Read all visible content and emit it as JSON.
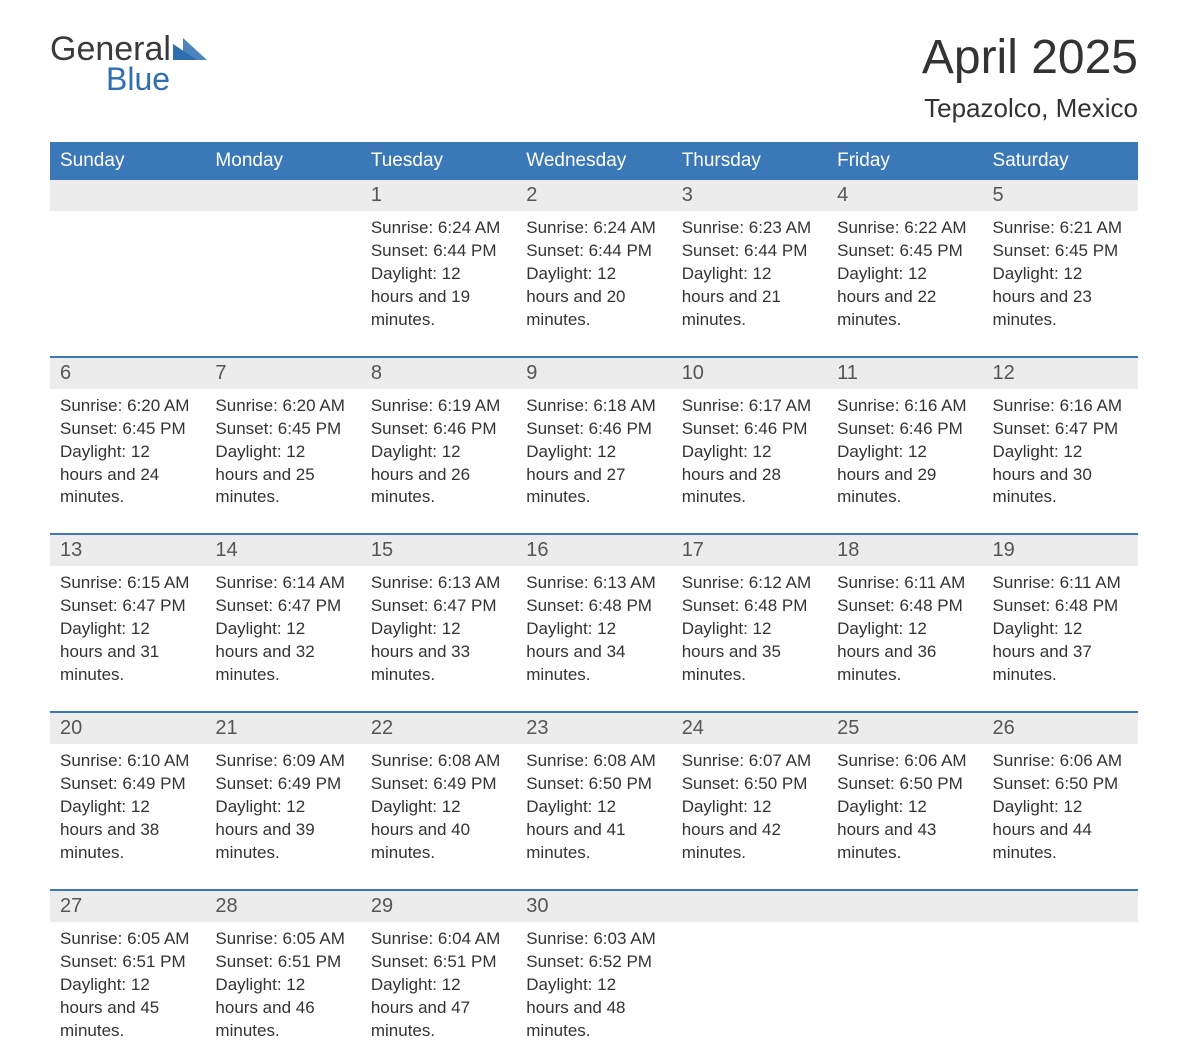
{
  "brand": {
    "general": "General",
    "blue": "Blue",
    "tri_color": "#2f6fb1"
  },
  "title": "April 2025",
  "location": "Tepazolco, Mexico",
  "colors": {
    "header_bg": "#3a78b7",
    "header_text": "#ffffff",
    "daynum_bg": "#ececec",
    "daynum_text": "#555555",
    "body_text": "#333333",
    "rule": "#3a78b7",
    "background": "#ffffff"
  },
  "fonts": {
    "title_size": 48,
    "location_size": 26,
    "header_size": 19,
    "daynum_size": 20,
    "body_size": 17
  },
  "day_names": [
    "Sunday",
    "Monday",
    "Tuesday",
    "Wednesday",
    "Thursday",
    "Friday",
    "Saturday"
  ],
  "weeks": [
    [
      {
        "n": "",
        "sr": "",
        "ss": "",
        "dl": ""
      },
      {
        "n": "",
        "sr": "",
        "ss": "",
        "dl": ""
      },
      {
        "n": "1",
        "sr": "Sunrise: 6:24 AM",
        "ss": "Sunset: 6:44 PM",
        "dl": "Daylight: 12 hours and 19 minutes."
      },
      {
        "n": "2",
        "sr": "Sunrise: 6:24 AM",
        "ss": "Sunset: 6:44 PM",
        "dl": "Daylight: 12 hours and 20 minutes."
      },
      {
        "n": "3",
        "sr": "Sunrise: 6:23 AM",
        "ss": "Sunset: 6:44 PM",
        "dl": "Daylight: 12 hours and 21 minutes."
      },
      {
        "n": "4",
        "sr": "Sunrise: 6:22 AM",
        "ss": "Sunset: 6:45 PM",
        "dl": "Daylight: 12 hours and 22 minutes."
      },
      {
        "n": "5",
        "sr": "Sunrise: 6:21 AM",
        "ss": "Sunset: 6:45 PM",
        "dl": "Daylight: 12 hours and 23 minutes."
      }
    ],
    [
      {
        "n": "6",
        "sr": "Sunrise: 6:20 AM",
        "ss": "Sunset: 6:45 PM",
        "dl": "Daylight: 12 hours and 24 minutes."
      },
      {
        "n": "7",
        "sr": "Sunrise: 6:20 AM",
        "ss": "Sunset: 6:45 PM",
        "dl": "Daylight: 12 hours and 25 minutes."
      },
      {
        "n": "8",
        "sr": "Sunrise: 6:19 AM",
        "ss": "Sunset: 6:46 PM",
        "dl": "Daylight: 12 hours and 26 minutes."
      },
      {
        "n": "9",
        "sr": "Sunrise: 6:18 AM",
        "ss": "Sunset: 6:46 PM",
        "dl": "Daylight: 12 hours and 27 minutes."
      },
      {
        "n": "10",
        "sr": "Sunrise: 6:17 AM",
        "ss": "Sunset: 6:46 PM",
        "dl": "Daylight: 12 hours and 28 minutes."
      },
      {
        "n": "11",
        "sr": "Sunrise: 6:16 AM",
        "ss": "Sunset: 6:46 PM",
        "dl": "Daylight: 12 hours and 29 minutes."
      },
      {
        "n": "12",
        "sr": "Sunrise: 6:16 AM",
        "ss": "Sunset: 6:47 PM",
        "dl": "Daylight: 12 hours and 30 minutes."
      }
    ],
    [
      {
        "n": "13",
        "sr": "Sunrise: 6:15 AM",
        "ss": "Sunset: 6:47 PM",
        "dl": "Daylight: 12 hours and 31 minutes."
      },
      {
        "n": "14",
        "sr": "Sunrise: 6:14 AM",
        "ss": "Sunset: 6:47 PM",
        "dl": "Daylight: 12 hours and 32 minutes."
      },
      {
        "n": "15",
        "sr": "Sunrise: 6:13 AM",
        "ss": "Sunset: 6:47 PM",
        "dl": "Daylight: 12 hours and 33 minutes."
      },
      {
        "n": "16",
        "sr": "Sunrise: 6:13 AM",
        "ss": "Sunset: 6:48 PM",
        "dl": "Daylight: 12 hours and 34 minutes."
      },
      {
        "n": "17",
        "sr": "Sunrise: 6:12 AM",
        "ss": "Sunset: 6:48 PM",
        "dl": "Daylight: 12 hours and 35 minutes."
      },
      {
        "n": "18",
        "sr": "Sunrise: 6:11 AM",
        "ss": "Sunset: 6:48 PM",
        "dl": "Daylight: 12 hours and 36 minutes."
      },
      {
        "n": "19",
        "sr": "Sunrise: 6:11 AM",
        "ss": "Sunset: 6:48 PM",
        "dl": "Daylight: 12 hours and 37 minutes."
      }
    ],
    [
      {
        "n": "20",
        "sr": "Sunrise: 6:10 AM",
        "ss": "Sunset: 6:49 PM",
        "dl": "Daylight: 12 hours and 38 minutes."
      },
      {
        "n": "21",
        "sr": "Sunrise: 6:09 AM",
        "ss": "Sunset: 6:49 PM",
        "dl": "Daylight: 12 hours and 39 minutes."
      },
      {
        "n": "22",
        "sr": "Sunrise: 6:08 AM",
        "ss": "Sunset: 6:49 PM",
        "dl": "Daylight: 12 hours and 40 minutes."
      },
      {
        "n": "23",
        "sr": "Sunrise: 6:08 AM",
        "ss": "Sunset: 6:50 PM",
        "dl": "Daylight: 12 hours and 41 minutes."
      },
      {
        "n": "24",
        "sr": "Sunrise: 6:07 AM",
        "ss": "Sunset: 6:50 PM",
        "dl": "Daylight: 12 hours and 42 minutes."
      },
      {
        "n": "25",
        "sr": "Sunrise: 6:06 AM",
        "ss": "Sunset: 6:50 PM",
        "dl": "Daylight: 12 hours and 43 minutes."
      },
      {
        "n": "26",
        "sr": "Sunrise: 6:06 AM",
        "ss": "Sunset: 6:50 PM",
        "dl": "Daylight: 12 hours and 44 minutes."
      }
    ],
    [
      {
        "n": "27",
        "sr": "Sunrise: 6:05 AM",
        "ss": "Sunset: 6:51 PM",
        "dl": "Daylight: 12 hours and 45 minutes."
      },
      {
        "n": "28",
        "sr": "Sunrise: 6:05 AM",
        "ss": "Sunset: 6:51 PM",
        "dl": "Daylight: 12 hours and 46 minutes."
      },
      {
        "n": "29",
        "sr": "Sunrise: 6:04 AM",
        "ss": "Sunset: 6:51 PM",
        "dl": "Daylight: 12 hours and 47 minutes."
      },
      {
        "n": "30",
        "sr": "Sunrise: 6:03 AM",
        "ss": "Sunset: 6:52 PM",
        "dl": "Daylight: 12 hours and 48 minutes."
      },
      {
        "n": "",
        "sr": "",
        "ss": "",
        "dl": ""
      },
      {
        "n": "",
        "sr": "",
        "ss": "",
        "dl": ""
      },
      {
        "n": "",
        "sr": "",
        "ss": "",
        "dl": ""
      }
    ]
  ]
}
